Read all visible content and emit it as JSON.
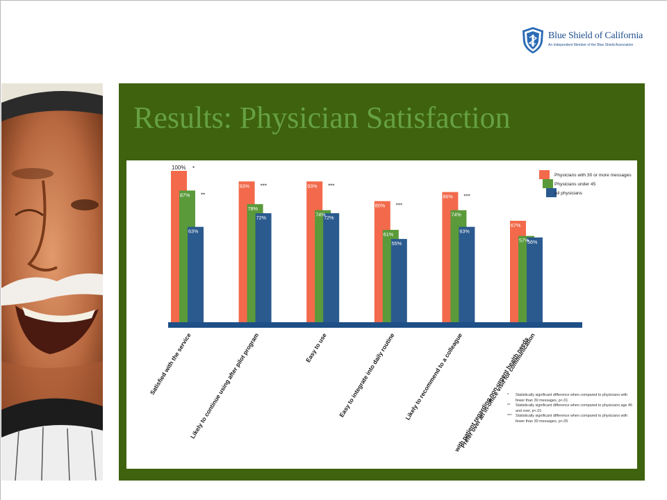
{
  "logo": {
    "name": "Blue Shield of California",
    "tagline": "An Independent Member of the Blue Shield Association"
  },
  "slide": {
    "title": "Results: Physician Satisfaction"
  },
  "colors": {
    "series_30plus": "#f26a4b",
    "series_under45": "#5a9a3a",
    "series_all": "#2a5a8e",
    "baseline": "#1e4f87",
    "panel": "#3e620e",
    "title": "#66a043"
  },
  "chart_data": {
    "type": "bar",
    "categories": [
      "Satisfied with the service",
      "Likely to continue using after pilot program",
      "Easy to use",
      "Easy to integrate into daily routine",
      "Likely to recommend to a colleague",
      "Prefer over an in-office visit for communication with patient regarding non-urgent health needs"
    ],
    "series": [
      {
        "name": "Physicians with 30 or more messages",
        "values": [
          100,
          93,
          93,
          80,
          86,
          67
        ],
        "labels": [
          "100%",
          "93%",
          "93%",
          "80%",
          "86%",
          "67%"
        ],
        "marks": [
          "*",
          "***",
          "***",
          "***",
          "***",
          ""
        ]
      },
      {
        "name": "Physicians under 45",
        "values": [
          87,
          78,
          74,
          61,
          74,
          57
        ],
        "labels": [
          "87%",
          "78%",
          "74%",
          "61%",
          "74%",
          "57%"
        ],
        "marks": [
          "**",
          "",
          "",
          "",
          "",
          ""
        ]
      },
      {
        "name": "All physicians",
        "values": [
          63,
          72,
          72,
          55,
          63,
          56
        ],
        "labels": [
          "63%",
          "72%",
          "72%",
          "55%",
          "63%",
          "56%"
        ],
        "marks": [
          "",
          "",
          "",
          "",
          "",
          ""
        ]
      }
    ],
    "ylim": [
      0,
      100
    ],
    "grid": false,
    "legend_position": "top-right",
    "footnotes": [
      {
        "mark": "*",
        "text": "Statistically significant difference when compared to physicians with fewer than 30 messages, p<.01"
      },
      {
        "mark": "**",
        "text": "Statistically significant difference when compared to physicians age 45 and over, p<.01"
      },
      {
        "mark": "***",
        "text": "Statistically significant difference when compared to physicians with fewer than 30 messages, p<.05"
      }
    ]
  }
}
